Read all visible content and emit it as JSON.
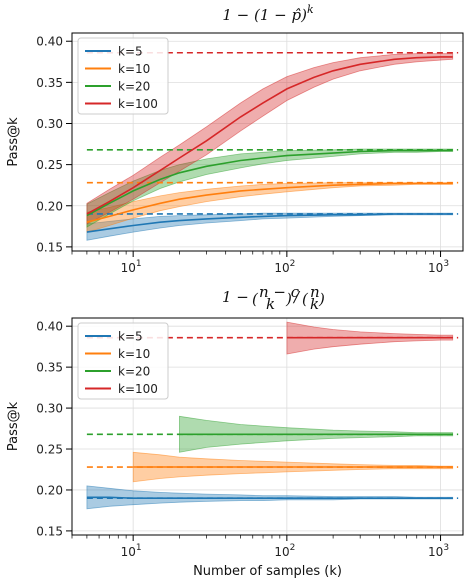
{
  "chart_data": [
    {
      "type": "line",
      "title": "1 − (1 − p̂)ᵏ",
      "title_parts": {
        "base": "1 − (1 − p̂)",
        "sup": "k"
      },
      "xlabel": "",
      "ylabel": "Pass@k",
      "xscale": "log",
      "xlim": [
        4,
        1400
      ],
      "ylim": [
        0.145,
        0.41
      ],
      "xticks": [
        10,
        100,
        1000
      ],
      "xtick_labels": [
        {
          "base": "10",
          "exp": "1"
        },
        {
          "base": "10",
          "exp": "2"
        },
        {
          "base": "10",
          "exp": "3"
        }
      ],
      "yticks": [
        0.15,
        0.2,
        0.25,
        0.3,
        0.35,
        0.4
      ],
      "ytick_labels": [
        "0.15",
        "0.20",
        "0.25",
        "0.30",
        "0.35",
        "0.40"
      ],
      "grid": true,
      "legend": "top-left",
      "series": [
        {
          "name": "k=5",
          "color": "#1f77b4",
          "truth": 0.19,
          "truth_from": 5,
          "x": [
            5,
            7,
            10,
            15,
            20,
            30,
            50,
            70,
            100,
            200,
            300,
            500,
            700,
            1000,
            1200
          ],
          "y": [
            0.168,
            0.172,
            0.176,
            0.18,
            0.182,
            0.184,
            0.186,
            0.187,
            0.188,
            0.189,
            0.189,
            0.19,
            0.19,
            0.19,
            0.19
          ],
          "lo": [
            0.158,
            0.163,
            0.168,
            0.173,
            0.176,
            0.179,
            0.182,
            0.184,
            0.185,
            0.187,
            0.188,
            0.189,
            0.189,
            0.189,
            0.189
          ],
          "hi": [
            0.178,
            0.181,
            0.184,
            0.187,
            0.188,
            0.189,
            0.19,
            0.191,
            0.191,
            0.191,
            0.191,
            0.191,
            0.191,
            0.191,
            0.191
          ]
        },
        {
          "name": "k=10",
          "color": "#ff7f0e",
          "truth": 0.228,
          "truth_from": 5,
          "x": [
            5,
            7,
            10,
            15,
            20,
            30,
            50,
            70,
            100,
            200,
            300,
            500,
            700,
            1000,
            1200
          ],
          "y": [
            0.18,
            0.187,
            0.195,
            0.203,
            0.208,
            0.213,
            0.218,
            0.22,
            0.222,
            0.225,
            0.226,
            0.227,
            0.227,
            0.227,
            0.227
          ],
          "lo": [
            0.168,
            0.176,
            0.185,
            0.194,
            0.199,
            0.205,
            0.211,
            0.214,
            0.217,
            0.222,
            0.224,
            0.225,
            0.226,
            0.226,
            0.226
          ],
          "hi": [
            0.192,
            0.198,
            0.205,
            0.212,
            0.216,
            0.22,
            0.224,
            0.226,
            0.227,
            0.228,
            0.228,
            0.228,
            0.228,
            0.228,
            0.228
          ]
        },
        {
          "name": "k=20",
          "color": "#2ca02c",
          "truth": 0.268,
          "truth_from": 5,
          "x": [
            5,
            7,
            10,
            15,
            20,
            30,
            50,
            70,
            100,
            200,
            300,
            500,
            700,
            1000,
            1200
          ],
          "y": [
            0.188,
            0.203,
            0.218,
            0.232,
            0.24,
            0.248,
            0.255,
            0.258,
            0.261,
            0.264,
            0.266,
            0.267,
            0.267,
            0.267,
            0.267
          ],
          "lo": [
            0.174,
            0.19,
            0.206,
            0.221,
            0.229,
            0.238,
            0.246,
            0.251,
            0.255,
            0.26,
            0.263,
            0.265,
            0.265,
            0.266,
            0.266
          ],
          "hi": [
            0.202,
            0.216,
            0.23,
            0.243,
            0.25,
            0.257,
            0.263,
            0.265,
            0.267,
            0.268,
            0.269,
            0.269,
            0.269,
            0.269,
            0.269
          ]
        },
        {
          "name": "k=100",
          "color": "#d62728",
          "truth": 0.386,
          "truth_from": 5,
          "x": [
            5,
            7,
            10,
            15,
            20,
            30,
            50,
            70,
            100,
            150,
            200,
            300,
            500,
            700,
            1000,
            1200
          ],
          "y": [
            0.19,
            0.205,
            0.222,
            0.243,
            0.258,
            0.279,
            0.308,
            0.325,
            0.342,
            0.356,
            0.364,
            0.372,
            0.378,
            0.38,
            0.381,
            0.381
          ],
          "lo": [
            0.178,
            0.192,
            0.208,
            0.228,
            0.242,
            0.262,
            0.291,
            0.309,
            0.328,
            0.344,
            0.354,
            0.364,
            0.372,
            0.375,
            0.377,
            0.378
          ],
          "hi": [
            0.203,
            0.22,
            0.237,
            0.259,
            0.274,
            0.296,
            0.325,
            0.342,
            0.357,
            0.368,
            0.374,
            0.38,
            0.384,
            0.385,
            0.385,
            0.385
          ]
        }
      ]
    },
    {
      "type": "line",
      "title": "1 − C(n−c, k) / C(n, k)",
      "xlabel": "Number of samples (k)",
      "ylabel": "Pass@k",
      "xscale": "log",
      "xlim": [
        4,
        1400
      ],
      "ylim": [
        0.145,
        0.41
      ],
      "xticks": [
        10,
        100,
        1000
      ],
      "xtick_labels": [
        {
          "base": "10",
          "exp": "1"
        },
        {
          "base": "10",
          "exp": "2"
        },
        {
          "base": "10",
          "exp": "3"
        }
      ],
      "yticks": [
        0.15,
        0.2,
        0.25,
        0.3,
        0.35,
        0.4
      ],
      "ytick_labels": [
        "0.15",
        "0.20",
        "0.25",
        "0.30",
        "0.35",
        "0.40"
      ],
      "grid": true,
      "legend": "top-left",
      "series": [
        {
          "name": "k=5",
          "color": "#1f77b4",
          "truth": 0.19,
          "truth_from": 5,
          "x": [
            5,
            7,
            10,
            15,
            20,
            30,
            50,
            70,
            100,
            200,
            300,
            500,
            700,
            1000,
            1200
          ],
          "y": [
            0.191,
            0.191,
            0.19,
            0.19,
            0.19,
            0.19,
            0.19,
            0.19,
            0.19,
            0.19,
            0.19,
            0.19,
            0.19,
            0.19,
            0.19
          ],
          "lo": [
            0.177,
            0.18,
            0.182,
            0.184,
            0.185,
            0.186,
            0.187,
            0.187,
            0.188,
            0.188,
            0.189,
            0.189,
            0.189,
            0.189,
            0.189
          ],
          "hi": [
            0.205,
            0.202,
            0.199,
            0.197,
            0.196,
            0.195,
            0.194,
            0.193,
            0.193,
            0.192,
            0.192,
            0.192,
            0.191,
            0.191,
            0.191
          ]
        },
        {
          "name": "k=10",
          "color": "#ff7f0e",
          "truth": 0.228,
          "truth_from": 5,
          "x": [
            10,
            15,
            20,
            30,
            50,
            70,
            100,
            200,
            300,
            500,
            700,
            1000,
            1200
          ],
          "y": [
            0.228,
            0.228,
            0.228,
            0.228,
            0.228,
            0.228,
            0.228,
            0.228,
            0.228,
            0.228,
            0.228,
            0.228,
            0.228
          ],
          "lo": [
            0.21,
            0.214,
            0.216,
            0.218,
            0.22,
            0.221,
            0.222,
            0.224,
            0.225,
            0.226,
            0.226,
            0.226,
            0.226
          ],
          "hi": [
            0.246,
            0.243,
            0.24,
            0.238,
            0.236,
            0.235,
            0.234,
            0.232,
            0.231,
            0.23,
            0.23,
            0.229,
            0.229
          ]
        },
        {
          "name": "k=20",
          "color": "#2ca02c",
          "truth": 0.268,
          "truth_from": 5,
          "x": [
            20,
            30,
            50,
            70,
            100,
            200,
            300,
            500,
            700,
            1000,
            1200
          ],
          "y": [
            0.268,
            0.268,
            0.268,
            0.268,
            0.268,
            0.268,
            0.268,
            0.268,
            0.268,
            0.268,
            0.268
          ],
          "lo": [
            0.246,
            0.252,
            0.256,
            0.258,
            0.26,
            0.263,
            0.264,
            0.265,
            0.266,
            0.266,
            0.266
          ],
          "hi": [
            0.29,
            0.285,
            0.28,
            0.278,
            0.276,
            0.273,
            0.272,
            0.271,
            0.27,
            0.27,
            0.27
          ]
        },
        {
          "name": "k=100",
          "color": "#d62728",
          "truth": 0.386,
          "truth_from": 5,
          "x": [
            100,
            150,
            200,
            300,
            500,
            700,
            1000,
            1200
          ],
          "y": [
            0.386,
            0.386,
            0.386,
            0.386,
            0.386,
            0.386,
            0.386,
            0.386
          ],
          "lo": [
            0.366,
            0.372,
            0.375,
            0.378,
            0.381,
            0.382,
            0.383,
            0.383
          ],
          "hi": [
            0.405,
            0.399,
            0.396,
            0.393,
            0.391,
            0.39,
            0.389,
            0.389
          ]
        }
      ]
    }
  ]
}
